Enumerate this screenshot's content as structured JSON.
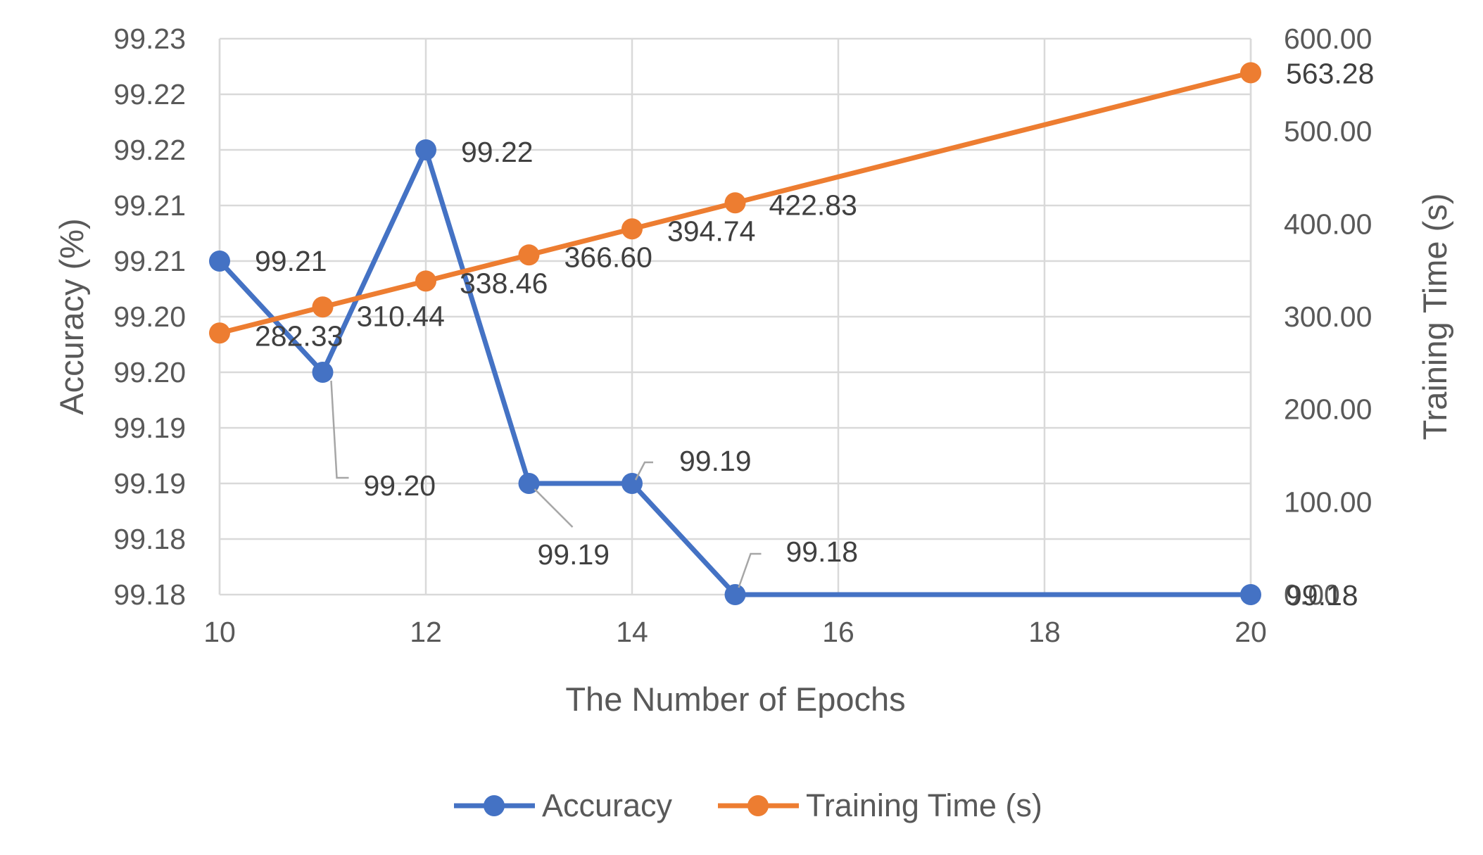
{
  "chart_data": {
    "type": "line",
    "xlabel": "The Number of Epochs",
    "ylabel_left": "Accuracy (%)",
    "ylabel_right": "Training Time (s)",
    "x": [
      10,
      11,
      12,
      13,
      14,
      15,
      20
    ],
    "x_ticks": [
      "10",
      "12",
      "14",
      "16",
      "18",
      "20"
    ],
    "xlim": [
      10,
      20
    ],
    "y_left_ticks": [
      "99.18",
      "99.18",
      "99.19",
      "99.19",
      "99.20",
      "99.20",
      "99.21",
      "99.21",
      "99.22",
      "99.22",
      "99.23"
    ],
    "ylim_left": [
      99.18,
      99.23
    ],
    "y_right_ticks": [
      "0.00",
      "100.00",
      "200.00",
      "300.00",
      "400.00",
      "500.00",
      "600.00"
    ],
    "ylim_right": [
      0,
      600
    ],
    "grid": true,
    "legend_position": "bottom",
    "series": [
      {
        "name": "Accuracy",
        "axis": "left",
        "color": "#4472c4",
        "values": [
          99.21,
          99.2,
          99.22,
          99.19,
          99.19,
          99.18,
          99.18
        ],
        "labels": [
          "99.21",
          "99.20",
          "99.22",
          "99.19",
          "99.19",
          "99.18",
          "99.18"
        ]
      },
      {
        "name": "Training Time (s)",
        "axis": "right",
        "color": "#ed7d31",
        "values": [
          282.33,
          310.44,
          338.46,
          366.6,
          394.74,
          422.83,
          563.28
        ],
        "labels": [
          "282.33",
          "310.44",
          "338.46",
          "366.60",
          "394.74",
          "422.83",
          "563.28"
        ]
      }
    ]
  }
}
